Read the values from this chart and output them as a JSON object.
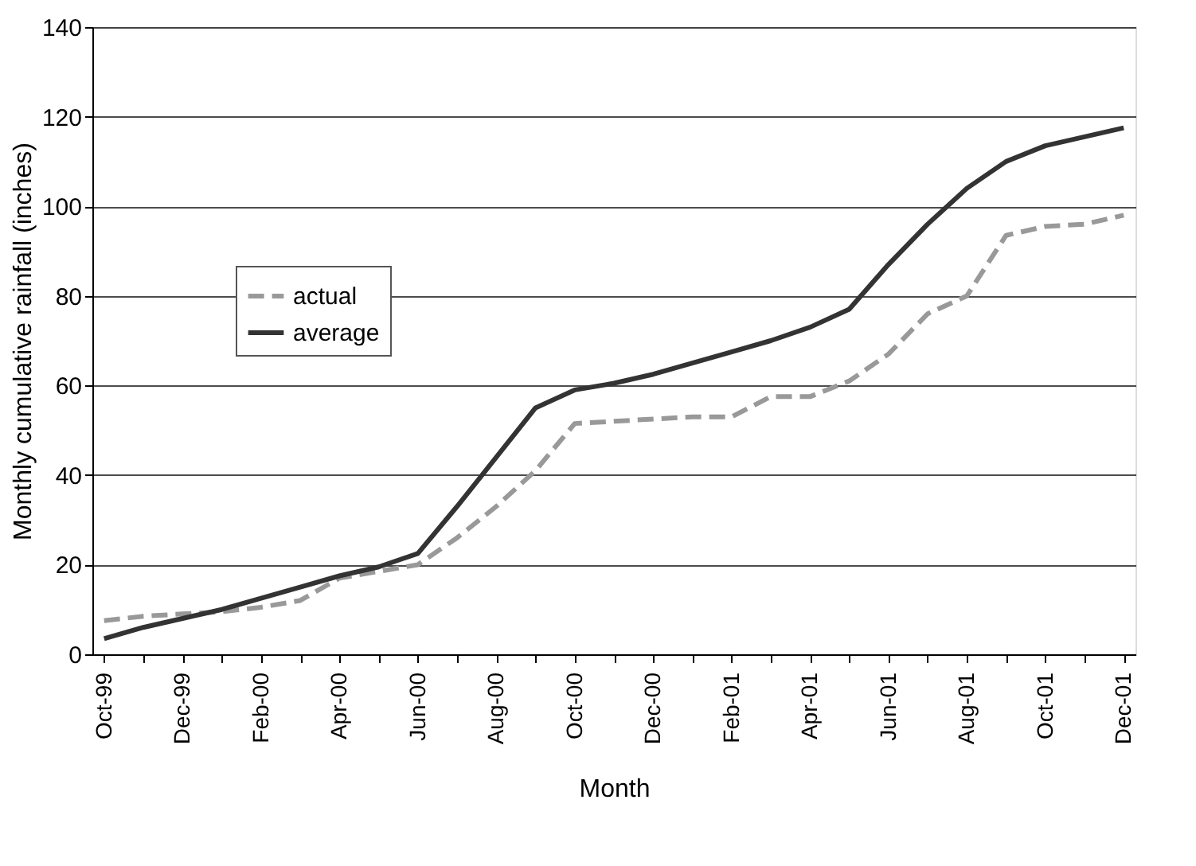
{
  "chart_data": {
    "type": "line",
    "xlabel": "Month",
    "ylabel": "Monthly cumulative rainfall (inches)",
    "categories": [
      "Oct-99",
      null,
      "Dec-99",
      null,
      "Feb-00",
      null,
      "Apr-00",
      null,
      "Jun-00",
      null,
      "Aug-00",
      null,
      "Oct-00",
      null,
      "Dec-00",
      null,
      "Feb-01",
      null,
      "Apr-01",
      null,
      "Jun-01",
      null,
      "Aug-01",
      null,
      "Oct-01",
      null,
      "Dec-01"
    ],
    "series": [
      {
        "name": "actual",
        "color": "#999999",
        "line_style": "dashed",
        "values": [
          7.5,
          8.5,
          9,
          9.5,
          10.5,
          12,
          17,
          18.5,
          20,
          26,
          33,
          41,
          51.5,
          52,
          52.5,
          53,
          53,
          57.5,
          57.5,
          61,
          67,
          76,
          80,
          93.5,
          95.5,
          96,
          98
        ]
      },
      {
        "name": "average",
        "color": "#333333",
        "line_style": "solid",
        "values": [
          3.5,
          6,
          8,
          10,
          12.5,
          15,
          17.5,
          19.5,
          22.5,
          33,
          44,
          55,
          59,
          60.5,
          62.5,
          65,
          67.5,
          70,
          73,
          77,
          87,
          96,
          104,
          110,
          113.5,
          115.5,
          117.5
        ]
      }
    ],
    "ylim": [
      0,
      140
    ],
    "yticks": [
      0,
      20,
      40,
      60,
      80,
      100,
      120,
      140
    ],
    "grid": "y",
    "legend": "left"
  }
}
